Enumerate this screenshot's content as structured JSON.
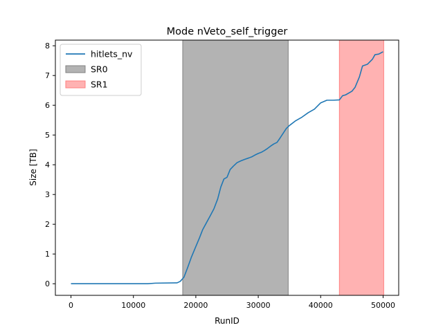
{
  "chart_data": {
    "type": "line",
    "title": "Mode nVeto_self_trigger",
    "xlabel": "RunID",
    "ylabel": "Size [TB]",
    "xlim": [
      -2500,
      52500
    ],
    "ylim": [
      -0.39,
      8.19
    ],
    "xticks": [
      0,
      10000,
      20000,
      30000,
      40000,
      50000
    ],
    "xtick_labels": [
      "0",
      "10000",
      "20000",
      "30000",
      "40000",
      "50000"
    ],
    "yticks": [
      0,
      1,
      2,
      3,
      4,
      5,
      6,
      7,
      8
    ],
    "ytick_labels": [
      "0",
      "1",
      "2",
      "3",
      "4",
      "5",
      "6",
      "7",
      "8"
    ],
    "grid": false,
    "legend_position": "top-left",
    "series": [
      {
        "name": "hitlets_nv",
        "color": "#1f77b4",
        "x": [
          0,
          5000,
          12300,
          13500,
          17000,
          17500,
          18100,
          18700,
          19300,
          20000,
          20600,
          21100,
          21700,
          22300,
          22900,
          23500,
          24000,
          24500,
          25000,
          25500,
          26000,
          26600,
          27200,
          27800,
          28500,
          29000,
          29500,
          30000,
          30500,
          31000,
          31500,
          32000,
          32500,
          33000,
          33500,
          34000,
          34500,
          35000,
          36000,
          37000,
          38000,
          39000,
          40000,
          41000,
          42000,
          43000,
          43500,
          44000,
          45000,
          45500,
          46200,
          46700,
          47500,
          48300,
          48700,
          49300,
          50000
        ],
        "y": [
          0.0,
          0.0,
          0.0,
          0.02,
          0.03,
          0.08,
          0.22,
          0.55,
          0.9,
          1.25,
          1.55,
          1.82,
          2.05,
          2.28,
          2.52,
          2.85,
          3.25,
          3.52,
          3.58,
          3.84,
          3.95,
          4.07,
          4.13,
          4.18,
          4.23,
          4.27,
          4.33,
          4.38,
          4.42,
          4.48,
          4.55,
          4.63,
          4.7,
          4.75,
          4.9,
          5.06,
          5.22,
          5.32,
          5.48,
          5.6,
          5.75,
          5.87,
          6.08,
          6.17,
          6.17,
          6.18,
          6.32,
          6.35,
          6.47,
          6.6,
          6.95,
          7.32,
          7.38,
          7.55,
          7.7,
          7.72,
          7.8
        ]
      }
    ],
    "spans": [
      {
        "name": "SR0",
        "x0": 17900,
        "x1": 34800,
        "color": "#808080",
        "opacity": 0.6
      },
      {
        "name": "SR1",
        "x0": 43000,
        "x1": 50100,
        "color": "#ff7f7f",
        "opacity": 0.6
      }
    ]
  }
}
